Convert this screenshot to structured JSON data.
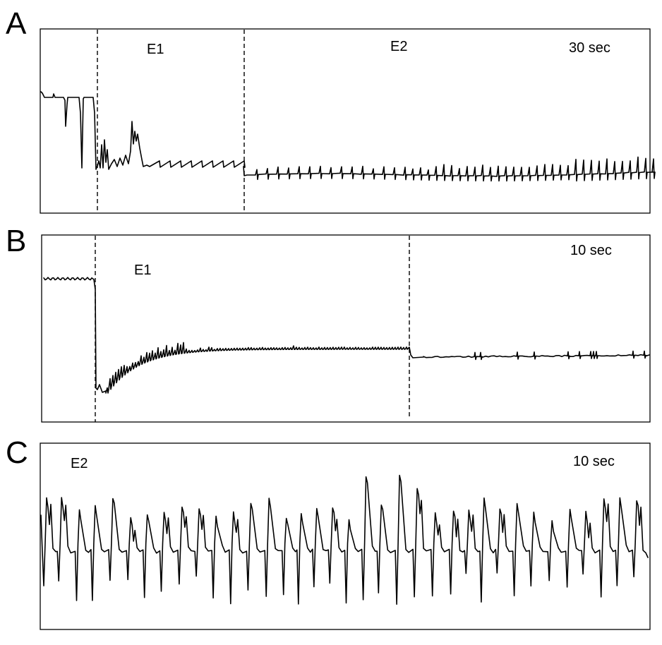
{
  "panels": [
    {
      "letter": "A",
      "scale_label": "30 sec",
      "phases": [
        {
          "label": "E1"
        },
        {
          "label": "E2"
        }
      ]
    },
    {
      "letter": "B",
      "scale_label": "10 sec",
      "phases": [
        {
          "label": "E1"
        }
      ]
    },
    {
      "letter": "C",
      "scale_label": "10 sec",
      "phases": [
        {
          "label": "E2"
        }
      ]
    }
  ]
}
